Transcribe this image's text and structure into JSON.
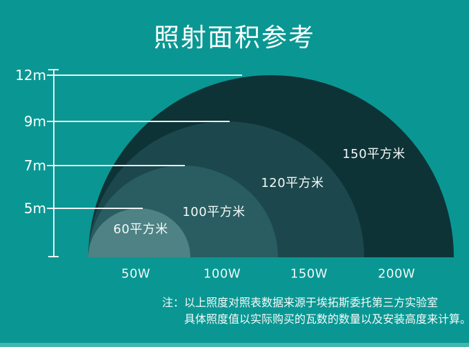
{
  "title": "照射面积参考",
  "colors": {
    "background": "#0a9793",
    "line_white": "#ffffff",
    "bottom_strip": "#42b5af"
  },
  "chart_data": {
    "type": "area",
    "title": "照射面积参考",
    "description": "Nested semicircular zones showing illuminated floor area per lamp wattage at mounting heights",
    "y_axis_ticks": [
      "12m",
      "9m",
      "7m",
      "5m"
    ],
    "x_axis_labels": [
      "50W",
      "100W",
      "150W",
      "200W"
    ],
    "rings": [
      {
        "wattage": "50W",
        "area": "60平方米",
        "mount_height": "5m",
        "color": "#4e8284"
      },
      {
        "wattage": "100W",
        "area": "100平方米",
        "mount_height": "7m",
        "color": "#295d61"
      },
      {
        "wattage": "150W",
        "area": "120平方米",
        "mount_height": "9m",
        "color": "#1c484d"
      },
      {
        "wattage": "200W",
        "area": "150平方米",
        "mount_height": "12m",
        "color": "#0e3337"
      }
    ]
  },
  "note": {
    "prefix": "注：",
    "line1": "以上照度对照表数据来源于埃拓斯委托第三方实验室",
    "line2": "具体照度值以实际购买的瓦数的数量以及安装高度来计算。"
  }
}
